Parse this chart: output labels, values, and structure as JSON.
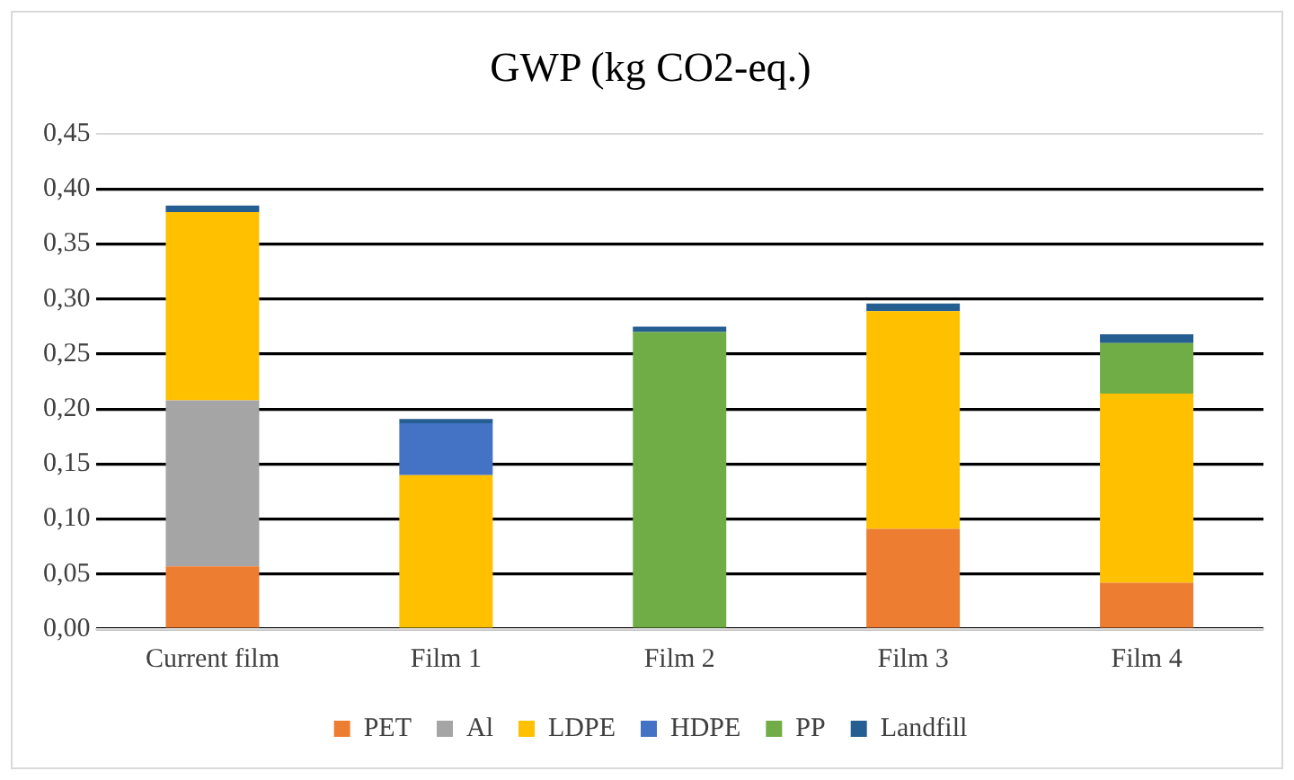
{
  "chart_data": {
    "type": "bar",
    "title": "GWP (kg CO2-eq.)",
    "stacked": true,
    "grid": "y",
    "legend": "bottom",
    "categories": [
      "Current film",
      "Film 1",
      "Film 2",
      "Film 3",
      "Film 4"
    ],
    "series": [
      {
        "name": "PET",
        "color": "#ed7d31",
        "values": [
          0.057,
          0,
          0,
          0.091,
          0.042
        ]
      },
      {
        "name": "Al",
        "color": "#a5a5a5",
        "values": [
          0.151,
          0,
          0,
          0,
          0
        ]
      },
      {
        "name": "LDPE",
        "color": "#ffc000",
        "values": [
          0.171,
          0.14,
          0,
          0.198,
          0.172
        ]
      },
      {
        "name": "HDPE",
        "color": "#4472c4",
        "values": [
          0,
          0.047,
          0,
          0,
          0
        ]
      },
      {
        "name": "PP",
        "color": "#70ad47",
        "values": [
          0,
          0,
          0.27,
          0,
          0.046
        ]
      },
      {
        "name": "Landfill",
        "color": "#255e91",
        "values": [
          0.006,
          0.004,
          0.005,
          0.007,
          0.008
        ]
      }
    ],
    "ylim": [
      0,
      0.45
    ],
    "yticks": [
      {
        "value": 0,
        "label": "0,00"
      },
      {
        "value": 0.05,
        "label": "0,05"
      },
      {
        "value": 0.1,
        "label": "0,10"
      },
      {
        "value": 0.15,
        "label": "0,15"
      },
      {
        "value": 0.2,
        "label": "0,20"
      },
      {
        "value": 0.25,
        "label": "0,25"
      },
      {
        "value": 0.3,
        "label": "0,30"
      },
      {
        "value": 0.35,
        "label": "0,35"
      },
      {
        "value": 0.4,
        "label": "0,40"
      },
      {
        "value": 0.45,
        "label": "0,45"
      }
    ]
  }
}
